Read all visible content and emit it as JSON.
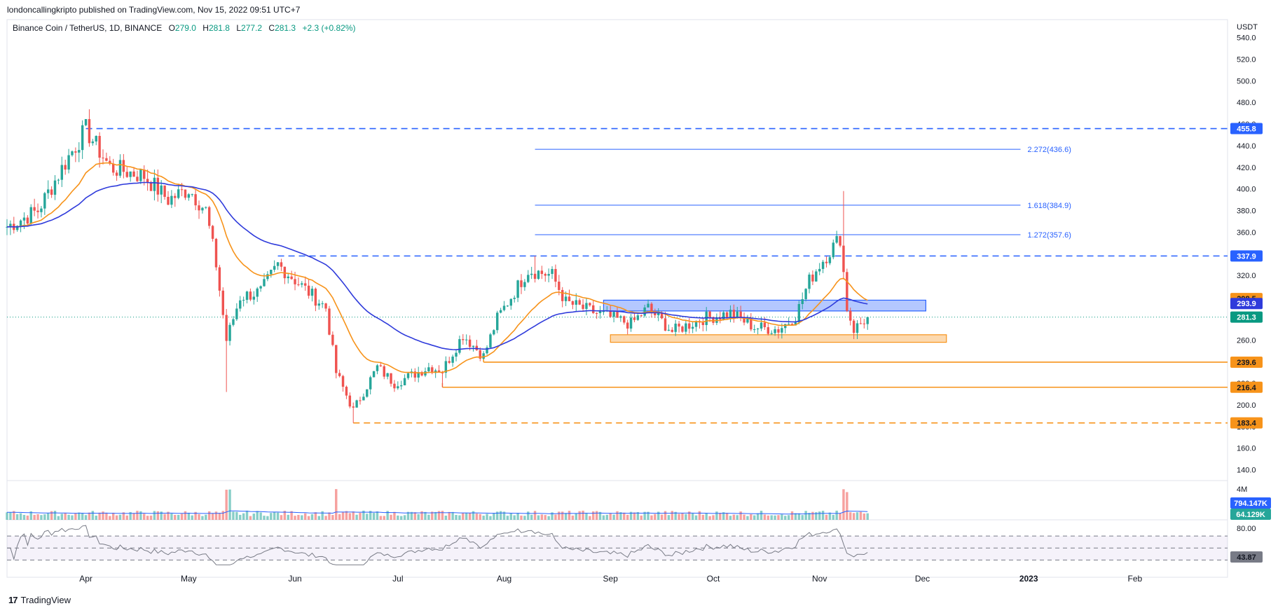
{
  "header": {
    "published": "londoncallingkripto published on TradingView.com, Nov 15, 2022 09:51 UTC+7"
  },
  "legend": {
    "symbol": "Binance Coin / TetherUS, 1D, BINANCE",
    "o_label": "O",
    "o_value": "279.0",
    "h_label": "H",
    "h_value": "281.8",
    "l_label": "L",
    "l_value": "277.2",
    "c_label": "C",
    "c_value": "281.3",
    "change": "+2.3 (+0.82%)"
  },
  "footer": {
    "brand": "TradingView"
  },
  "colors": {
    "up": "#26a69a",
    "down": "#ef5350",
    "ema_fast": "#f7931a",
    "ema_slow": "#2f3bdb",
    "blue_level": "#2962ff",
    "orange_level": "#f7931a",
    "last_price": "#089981",
    "grid_border": "#e0e3eb"
  },
  "chart_data": [
    {
      "type": "candlestick",
      "title": "Binance Coin / TetherUS, 1D, BINANCE",
      "ylabel": "USDT",
      "ylim": [
        130,
        545
      ],
      "y_ticks": [
        "540.0",
        "520.0",
        "500.0",
        "480.0",
        "460.0",
        "440.0",
        "420.0",
        "400.0",
        "380.0",
        "360.0",
        "340.0",
        "320.0",
        "300.0",
        "280.0",
        "260.0",
        "240.0",
        "220.0",
        "200.0",
        "180.0",
        "160.0",
        "140.0"
      ],
      "x_ticks": [
        "Apr",
        "May",
        "Jun",
        "Jul",
        "Aug",
        "Sep",
        "Oct",
        "Nov",
        "Dec",
        "2023",
        "Feb"
      ],
      "x_range": [
        "2022-03-09",
        "2023-02-28"
      ],
      "last_close": 281.3,
      "price_waypoints": [
        [
          "2022-03-09",
          365
        ],
        [
          "2022-03-18",
          380
        ],
        [
          "2022-03-27",
          430
        ],
        [
          "2022-04-01",
          455
        ],
        [
          "2022-04-08",
          420
        ],
        [
          "2022-04-18",
          412
        ],
        [
          "2022-04-25",
          390
        ],
        [
          "2022-05-01",
          400
        ],
        [
          "2022-05-06",
          380
        ],
        [
          "2022-05-09",
          330
        ],
        [
          "2022-05-12",
          260
        ],
        [
          "2022-05-16",
          300
        ],
        [
          "2022-05-22",
          305
        ],
        [
          "2022-05-27",
          330
        ],
        [
          "2022-06-03",
          310
        ],
        [
          "2022-06-10",
          290
        ],
        [
          "2022-06-13",
          230
        ],
        [
          "2022-06-18",
          195
        ],
        [
          "2022-06-25",
          235
        ],
        [
          "2022-06-30",
          220
        ],
        [
          "2022-07-10",
          235
        ],
        [
          "2022-07-14",
          232
        ],
        [
          "2022-07-20",
          265
        ],
        [
          "2022-07-26",
          245
        ],
        [
          "2022-07-30",
          280
        ],
        [
          "2022-08-08",
          325
        ],
        [
          "2022-08-15",
          320
        ],
        [
          "2022-08-19",
          295
        ],
        [
          "2022-08-28",
          285
        ],
        [
          "2022-09-07",
          275
        ],
        [
          "2022-09-12",
          290
        ],
        [
          "2022-09-19",
          268
        ],
        [
          "2022-09-28",
          280
        ],
        [
          "2022-10-06",
          285
        ],
        [
          "2022-10-13",
          272
        ],
        [
          "2022-10-20",
          270
        ],
        [
          "2022-10-25",
          282
        ],
        [
          "2022-10-29",
          315
        ],
        [
          "2022-11-01",
          330
        ],
        [
          "2022-11-07",
          355
        ],
        [
          "2022-11-09",
          290
        ],
        [
          "2022-11-11",
          270
        ],
        [
          "2022-11-15",
          281
        ]
      ],
      "series": [
        {
          "name": "EMA fast",
          "color": "#f7931a"
        },
        {
          "name": "EMA slow",
          "color": "#2f3bdb"
        }
      ],
      "levels": [
        {
          "label": "455.8",
          "value": 455.8,
          "color": "#2962ff",
          "style": "dashed",
          "from": "2022-04-01"
        },
        {
          "label": "337.9",
          "value": 337.9,
          "color": "#2962ff",
          "style": "dashed",
          "from": "2022-05-27"
        },
        {
          "label": "298.5",
          "value": 298.5,
          "color": "#f7931a",
          "style": "marker"
        },
        {
          "label": "293.9",
          "value": 293.9,
          "color": "#2f3bdb",
          "style": "marker"
        },
        {
          "label": "281.3",
          "value": 281.3,
          "color": "#089981",
          "style": "dotted",
          "from": "2022-03-09"
        },
        {
          "label": "239.6",
          "value": 239.6,
          "color": "#f7931a",
          "style": "solid",
          "from": "2022-07-26"
        },
        {
          "label": "216.4",
          "value": 216.4,
          "color": "#f7931a",
          "style": "solid",
          "from": "2022-07-14"
        },
        {
          "label": "183.4",
          "value": 183.4,
          "color": "#f7931a",
          "style": "dashed",
          "from": "2022-06-18"
        }
      ],
      "fib_levels": [
        {
          "label": "2.272(436.6)",
          "value": 436.6
        },
        {
          "label": "1.618(384.9)",
          "value": 384.9
        },
        {
          "label": "1.272(357.6)",
          "value": 357.6
        }
      ],
      "fib_range": [
        "2022-08-10",
        "2022-12-01"
      ],
      "zones": [
        {
          "name": "resistance-zone",
          "color": "#2962ff",
          "from": "2022-08-30",
          "to": "2022-12-02",
          "low": 287,
          "high": 297
        },
        {
          "name": "support-zone",
          "color": "#f7931a",
          "from": "2022-09-01",
          "to": "2022-12-08",
          "low": 258,
          "high": 265
        }
      ]
    },
    {
      "type": "bar",
      "title": "Volume",
      "y_ticks": [
        "4M"
      ],
      "last_values": [
        "794.147K",
        "64.129K"
      ],
      "spike_dates": [
        "2022-05-12",
        "2022-05-13",
        "2022-06-13",
        "2022-11-08",
        "2022-11-09"
      ]
    },
    {
      "type": "line",
      "title": "RSI",
      "y_ticks": [
        "80.00"
      ],
      "last_value": "43.87",
      "bands": [
        70,
        50,
        30
      ]
    }
  ]
}
